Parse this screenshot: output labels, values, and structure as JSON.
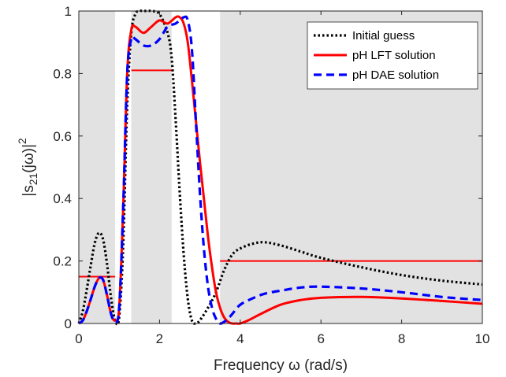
{
  "chart_data": {
    "type": "line",
    "xlabel": "Frequency ω (rad/s)",
    "ylabel": "|s21(jω)|2",
    "xlim": [
      0,
      10
    ],
    "ylim": [
      0,
      1
    ],
    "x_ticks": [
      "0",
      "2",
      "4",
      "6",
      "8",
      "10"
    ],
    "y_ticks": [
      "0",
      "0.2",
      "0.4",
      "0.6",
      "0.8",
      "1"
    ],
    "shaded_bands": [
      {
        "x_from": 0,
        "x_to": 0.9,
        "color": "#e2e2e2"
      },
      {
        "x_from": 1.3,
        "x_to": 2.3,
        "color": "#e2e2e2"
      },
      {
        "x_from": 3.5,
        "x_to": 10,
        "color": "#e2e2e2"
      }
    ],
    "constraint_lines": [
      {
        "x_from": 0,
        "x_to": 0.9,
        "y": 0.15,
        "color": "#ff0000"
      },
      {
        "x_from": 1.3,
        "x_to": 2.3,
        "y": 0.81,
        "color": "#ff0000"
      },
      {
        "x_from": 3.5,
        "x_to": 10,
        "y": 0.2,
        "color": "#ff0000"
      }
    ],
    "legend_position": "top-right",
    "series": [
      {
        "name": "Initial guess",
        "color": "#000000",
        "style": "dotted",
        "x": [
          0,
          0.1,
          0.2,
          0.3,
          0.4,
          0.5,
          0.6,
          0.7,
          0.8,
          0.9,
          1.0,
          1.1,
          1.2,
          1.3,
          1.4,
          1.5,
          1.6,
          1.8,
          2.0,
          2.2,
          2.3,
          2.4,
          2.5,
          2.6,
          2.7,
          2.8,
          2.9,
          3.0,
          3.2,
          3.4,
          3.6,
          3.8,
          4.0,
          4.3,
          4.6,
          5.0,
          5.5,
          6.0,
          7.0,
          8.0,
          9.0,
          10.0
        ],
        "y": [
          0,
          0.04,
          0.11,
          0.19,
          0.26,
          0.29,
          0.27,
          0.19,
          0.08,
          0.01,
          0.02,
          0.25,
          0.7,
          0.93,
          0.99,
          1.0,
          1.0,
          1.0,
          0.99,
          0.93,
          0.85,
          0.65,
          0.42,
          0.22,
          0.08,
          0.01,
          0.0,
          0.01,
          0.05,
          0.1,
          0.17,
          0.22,
          0.24,
          0.255,
          0.26,
          0.25,
          0.23,
          0.21,
          0.18,
          0.155,
          0.137,
          0.125
        ]
      },
      {
        "name": "pH LFT solution",
        "color": "#ff0000",
        "style": "solid",
        "x": [
          0,
          0.1,
          0.2,
          0.3,
          0.4,
          0.5,
          0.6,
          0.7,
          0.8,
          0.9,
          1.0,
          1.1,
          1.2,
          1.3,
          1.4,
          1.6,
          1.8,
          2.0,
          2.2,
          2.4,
          2.5,
          2.6,
          2.7,
          2.8,
          2.9,
          3.0,
          3.1,
          3.2,
          3.3,
          3.4,
          3.5,
          3.6,
          3.7,
          3.8,
          3.9,
          4.0,
          4.2,
          4.5,
          5.0,
          5.5,
          6.0,
          7.0,
          8.0,
          9.0,
          10.0
        ],
        "y": [
          0,
          0.01,
          0.04,
          0.08,
          0.12,
          0.145,
          0.14,
          0.09,
          0.03,
          0.01,
          0.05,
          0.37,
          0.8,
          0.94,
          0.95,
          0.93,
          0.95,
          0.97,
          0.96,
          0.98,
          0.98,
          0.96,
          0.9,
          0.78,
          0.65,
          0.52,
          0.4,
          0.28,
          0.18,
          0.1,
          0.05,
          0.02,
          0.005,
          0.0,
          0.0,
          0.0,
          0.01,
          0.03,
          0.06,
          0.075,
          0.082,
          0.085,
          0.08,
          0.072,
          0.063
        ]
      },
      {
        "name": "pH DAE solution",
        "color": "#0000ff",
        "style": "dashed",
        "x": [
          0,
          0.1,
          0.2,
          0.3,
          0.4,
          0.5,
          0.6,
          0.7,
          0.8,
          0.9,
          1.0,
          1.1,
          1.2,
          1.3,
          1.4,
          1.6,
          1.8,
          2.0,
          2.2,
          2.4,
          2.6,
          2.7,
          2.8,
          2.9,
          3.0,
          3.1,
          3.2,
          3.3,
          3.4,
          3.5,
          3.6,
          3.7,
          3.8,
          4.0,
          4.3,
          4.6,
          5.0,
          5.5,
          6.0,
          7.0,
          8.0,
          9.0,
          10.0
        ],
        "y": [
          0,
          0.01,
          0.04,
          0.08,
          0.12,
          0.145,
          0.14,
          0.09,
          0.03,
          0.005,
          0.05,
          0.37,
          0.8,
          0.91,
          0.91,
          0.89,
          0.89,
          0.91,
          0.95,
          0.96,
          0.98,
          0.97,
          0.88,
          0.65,
          0.42,
          0.24,
          0.12,
          0.05,
          0.015,
          0.0,
          0.005,
          0.015,
          0.03,
          0.06,
          0.08,
          0.095,
          0.105,
          0.115,
          0.118,
          0.112,
          0.1,
          0.085,
          0.075
        ]
      }
    ]
  }
}
